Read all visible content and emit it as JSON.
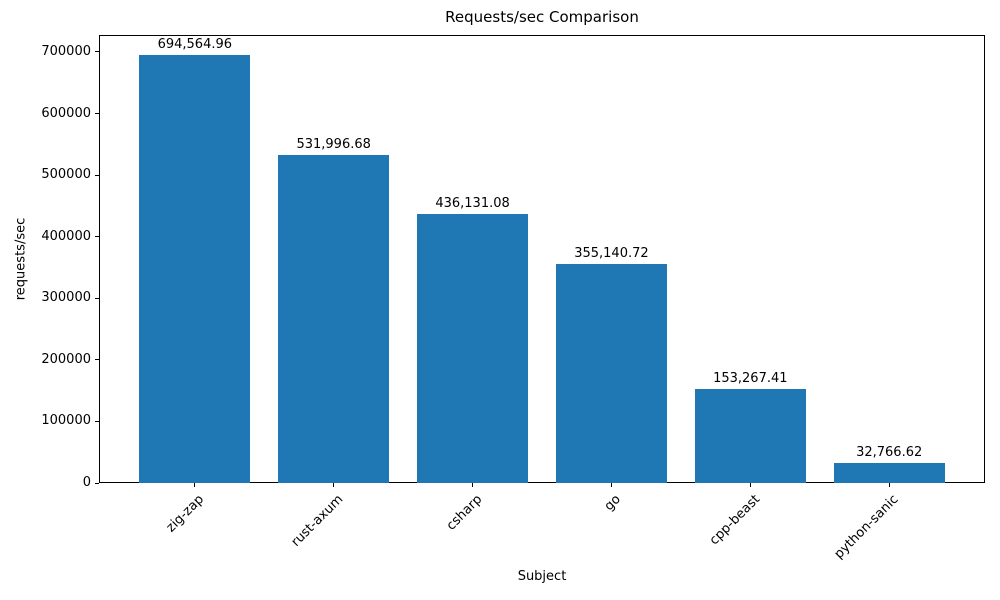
{
  "chart_data": {
    "type": "bar",
    "title": "Requests/sec Comparison",
    "xlabel": "Subject",
    "ylabel": "requests/sec",
    "categories": [
      "zig-zap",
      "rust-axum",
      "csharp",
      "go",
      "cpp-beast",
      "python-sanic"
    ],
    "values": [
      694564.96,
      531996.68,
      436131.08,
      355140.72,
      153267.41,
      32766.62
    ],
    "value_labels": [
      "694,564.96",
      "531,996.68",
      "436,131.08",
      "355,140.72",
      "153,267.41",
      "32,766.62"
    ],
    "ytick_labels": [
      "0",
      "100000",
      "200000",
      "300000",
      "400000",
      "500000",
      "600000",
      "700000"
    ],
    "yticks": [
      0,
      100000,
      200000,
      300000,
      400000,
      500000,
      600000,
      700000
    ],
    "ylim": [
      0,
      727600
    ],
    "bar_color": "#1f77b4",
    "axis_color": "#000000",
    "grid": false,
    "legend": "none"
  }
}
